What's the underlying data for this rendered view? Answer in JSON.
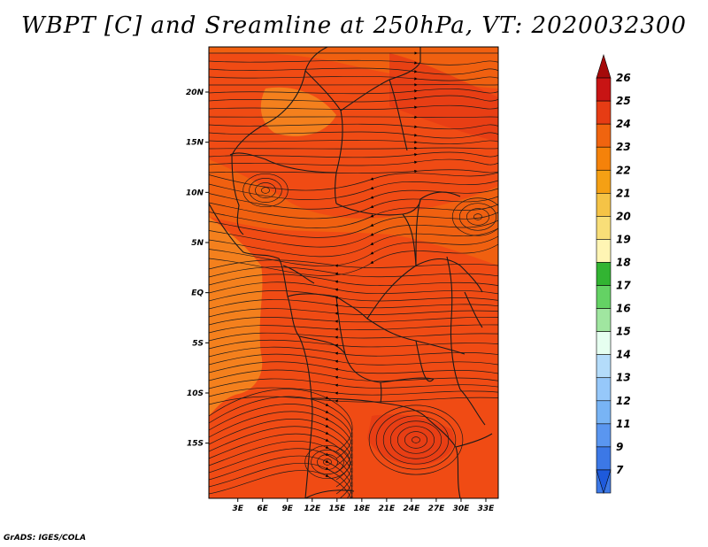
{
  "title": "WBPT [C] and Sreamline at 250hPa, VT: 2020032300",
  "credit": "GrADS: IGES/COLA",
  "map": {
    "lon_range": [
      -0.5,
      34.5
    ],
    "lat_range": [
      -20.5,
      24.5
    ],
    "lat_ticks": [
      {
        "value": 20,
        "label": "20N"
      },
      {
        "value": 15,
        "label": "15N"
      },
      {
        "value": 10,
        "label": "10N"
      },
      {
        "value": 5,
        "label": "5N"
      },
      {
        "value": 0,
        "label": "EQ"
      },
      {
        "value": -5,
        "label": "5S"
      },
      {
        "value": -10,
        "label": "10S"
      },
      {
        "value": -15,
        "label": "15S"
      }
    ],
    "lon_ticks": [
      {
        "value": 3,
        "label": "3E"
      },
      {
        "value": 6,
        "label": "6E"
      },
      {
        "value": 9,
        "label": "9E"
      },
      {
        "value": 12,
        "label": "12E"
      },
      {
        "value": 15,
        "label": "15E"
      },
      {
        "value": 18,
        "label": "18E"
      },
      {
        "value": 21,
        "label": "21E"
      },
      {
        "value": 24,
        "label": "24E"
      },
      {
        "value": 27,
        "label": "27E"
      },
      {
        "value": 30,
        "label": "30E"
      },
      {
        "value": 33,
        "label": "33E"
      }
    ],
    "field_colors": {
      "base": "#f0640f",
      "dominant": "#f04b14",
      "warm": "#e63c14",
      "cool": "#f58a1e"
    }
  },
  "colorbar": {
    "levels": [
      {
        "label": "26",
        "color": "#a50a0a"
      },
      {
        "label": "25",
        "color": "#c81414"
      },
      {
        "label": "24",
        "color": "#e63c14"
      },
      {
        "label": "23",
        "color": "#f0640f"
      },
      {
        "label": "22",
        "color": "#f5820a"
      },
      {
        "label": "21",
        "color": "#f5a014"
      },
      {
        "label": "20",
        "color": "#f5c346"
      },
      {
        "label": "19",
        "color": "#f8de78"
      },
      {
        "label": "18",
        "color": "#fff5b4"
      },
      {
        "label": "17",
        "color": "#32b432"
      },
      {
        "label": "16",
        "color": "#64d264"
      },
      {
        "label": "15",
        "color": "#a0e6a0"
      },
      {
        "label": "14",
        "color": "#e6fff0"
      },
      {
        "label": "13",
        "color": "#b4dcfa"
      },
      {
        "label": "12",
        "color": "#96c8fa"
      },
      {
        "label": "11",
        "color": "#78b4f5"
      },
      {
        "label": "9",
        "color": "#5a96f0"
      },
      {
        "label": "7",
        "color": "#3c78e6"
      }
    ],
    "bottom_color": "#1e5adc"
  }
}
